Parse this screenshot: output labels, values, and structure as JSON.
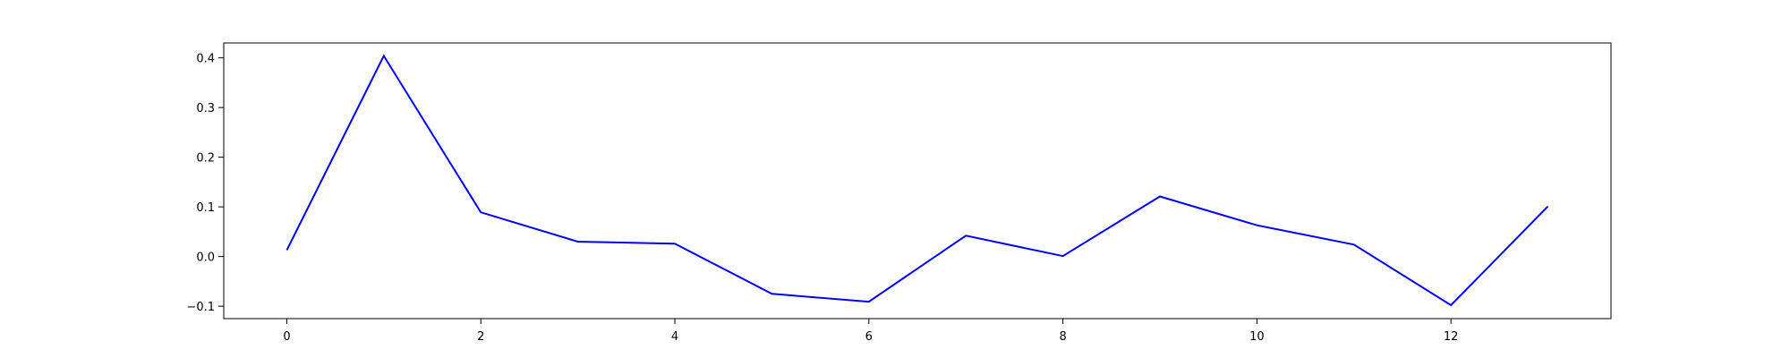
{
  "chart_data": {
    "type": "line",
    "title": "",
    "xlabel": "",
    "ylabel": "",
    "xlim": [
      -0.65,
      13.65
    ],
    "ylim": [
      -0.125,
      0.43
    ],
    "xticks": [
      0,
      2,
      4,
      6,
      8,
      10,
      12
    ],
    "yticks": [
      -0.1,
      0.0,
      0.1,
      0.2,
      0.3,
      0.4
    ],
    "xtick_labels": [
      "0",
      "2",
      "4",
      "6",
      "8",
      "10",
      "12"
    ],
    "ytick_labels": [
      "−0.1",
      "0.0",
      "0.1",
      "0.2",
      "0.3",
      "0.4"
    ],
    "grid": false,
    "legend": "none",
    "series": [
      {
        "color": "#0000ff",
        "x": [
          0,
          1,
          2,
          3,
          4,
          5,
          6,
          7,
          8,
          9,
          10,
          11,
          12,
          13
        ],
        "y": [
          0.013,
          0.404,
          0.089,
          0.03,
          0.026,
          -0.075,
          -0.091,
          0.042,
          0.001,
          0.121,
          0.063,
          0.024,
          -0.098,
          0.101
        ]
      }
    ]
  }
}
